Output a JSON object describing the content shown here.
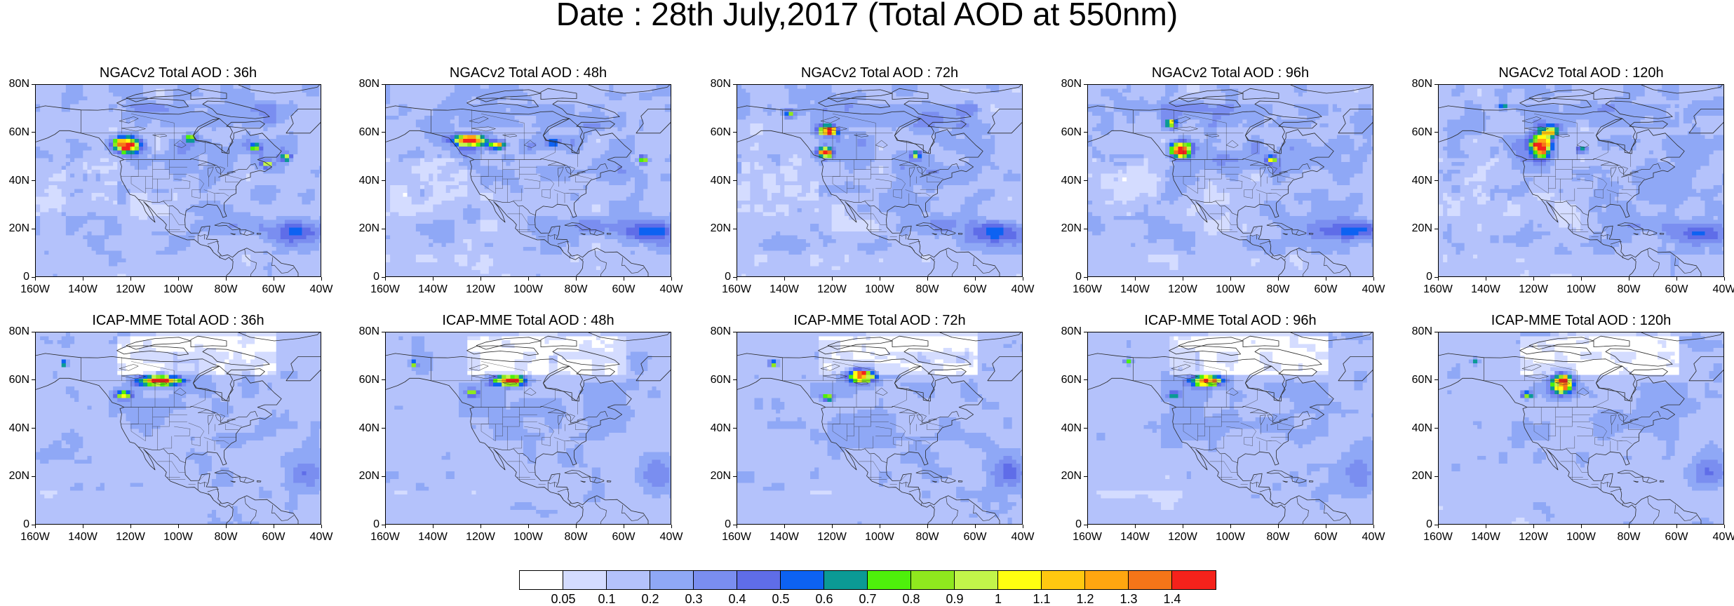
{
  "title": "Date : 28th July,2017 (Total AOD at 550nm)",
  "lat_labels": [
    "80N",
    "60N",
    "40N",
    "20N",
    "0"
  ],
  "lon_labels": [
    "160W",
    "140W",
    "120W",
    "100W",
    "80W",
    "60W",
    "40W"
  ],
  "colors": {
    "levels": [
      "#ffffff",
      "#d4dcff",
      "#b4c2fb",
      "#8fa8f6",
      "#7a8ef0",
      "#5f6de8",
      "#0d62f2",
      "#0b9a95",
      "#4ef00b",
      "#8fe81e",
      "#c2f54a",
      "#ffff10",
      "#ffc810",
      "#ffa610",
      "#f57518",
      "#f5221b"
    ],
    "coast": "#2a2a2a"
  },
  "colorbar_labels": [
    "0.05",
    "0.1",
    "0.2",
    "0.3",
    "0.4",
    "0.5",
    "0.6",
    "0.7",
    "0.8",
    "0.9",
    "1",
    "1.1",
    "1.2",
    "1.3",
    "1.4"
  ],
  "panels": [
    {
      "title": "NGACv2 Total AOD : 36h",
      "model": "ngac",
      "plumes": [
        [
          -122,
          55,
          5,
          3,
          15
        ],
        [
          -95,
          58,
          2,
          1.5,
          8
        ],
        [
          -68,
          54,
          2,
          1.5,
          8
        ],
        [
          -63,
          47,
          2,
          1.2,
          8
        ],
        [
          -55,
          50,
          2,
          1.5,
          7
        ]
      ]
    },
    {
      "title": "NGACv2 Total AOD : 48h",
      "model": "ngac",
      "plumes": [
        [
          -125,
          57,
          6,
          2.2,
          14
        ],
        [
          -113,
          55,
          3,
          1.5,
          11
        ],
        [
          -90,
          56,
          2,
          1.2,
          7
        ],
        [
          -52,
          49,
          2,
          1.5,
          8
        ]
      ]
    },
    {
      "title": "NGACv2 Total AOD : 72h",
      "model": "ngac",
      "plumes": [
        [
          -122,
          61,
          4,
          2,
          14
        ],
        [
          -123,
          52,
          3,
          2,
          13
        ],
        [
          -138,
          68,
          2,
          1.5,
          7
        ],
        [
          -85,
          51,
          2,
          1.5,
          7
        ]
      ]
    },
    {
      "title": "NGACv2 Total AOD : 96h",
      "model": "ngac",
      "plumes": [
        [
          -121,
          53,
          4,
          3,
          15
        ],
        [
          -125,
          64,
          2,
          1.5,
          8
        ],
        [
          -83,
          49,
          2,
          1.5,
          7
        ]
      ]
    },
    {
      "title": "NGACv2 Total AOD : 120h",
      "model": "ngac",
      "plumes": [
        [
          -117,
          55,
          4,
          5,
          15
        ],
        [
          -113,
          61,
          3,
          2,
          10
        ],
        [
          -133,
          71,
          2,
          1.2,
          7
        ],
        [
          -100,
          53,
          2,
          1.2,
          7
        ]
      ]
    },
    {
      "title": "ICAP-MME Total AOD : 36h",
      "model": "icap",
      "plumes": [
        [
          -108,
          60,
          8,
          2,
          14
        ],
        [
          -123,
          54,
          3,
          1.5,
          9
        ],
        [
          -148,
          67,
          1.2,
          1.2,
          7
        ]
      ]
    },
    {
      "title": "ICAP-MME Total AOD : 48h",
      "model": "icap",
      "plumes": [
        [
          -108,
          60,
          6,
          2,
          14
        ],
        [
          -124,
          55,
          2,
          1.2,
          8
        ],
        [
          -148,
          67,
          1.2,
          1.2,
          7
        ]
      ]
    },
    {
      "title": "ICAP-MME Total AOD : 72h",
      "model": "icap",
      "plumes": [
        [
          -108,
          62,
          5,
          2.5,
          15
        ],
        [
          -122,
          53,
          2,
          1.2,
          8
        ],
        [
          -145,
          67,
          1.5,
          1.2,
          7
        ]
      ]
    },
    {
      "title": "ICAP-MME Total AOD : 96h",
      "model": "icap",
      "plumes": [
        [
          -110,
          60,
          6,
          2,
          14
        ],
        [
          -124,
          54,
          2,
          1.2,
          8
        ],
        [
          -143,
          68,
          1.5,
          1.2,
          6
        ]
      ]
    },
    {
      "title": "ICAP-MME Total AOD : 120h",
      "model": "icap",
      "plumes": [
        [
          -108,
          59,
          4,
          4,
          14
        ],
        [
          -123,
          54,
          2,
          1.2,
          8
        ],
        [
          -145,
          68,
          1.2,
          1.2,
          6
        ]
      ]
    }
  ]
}
